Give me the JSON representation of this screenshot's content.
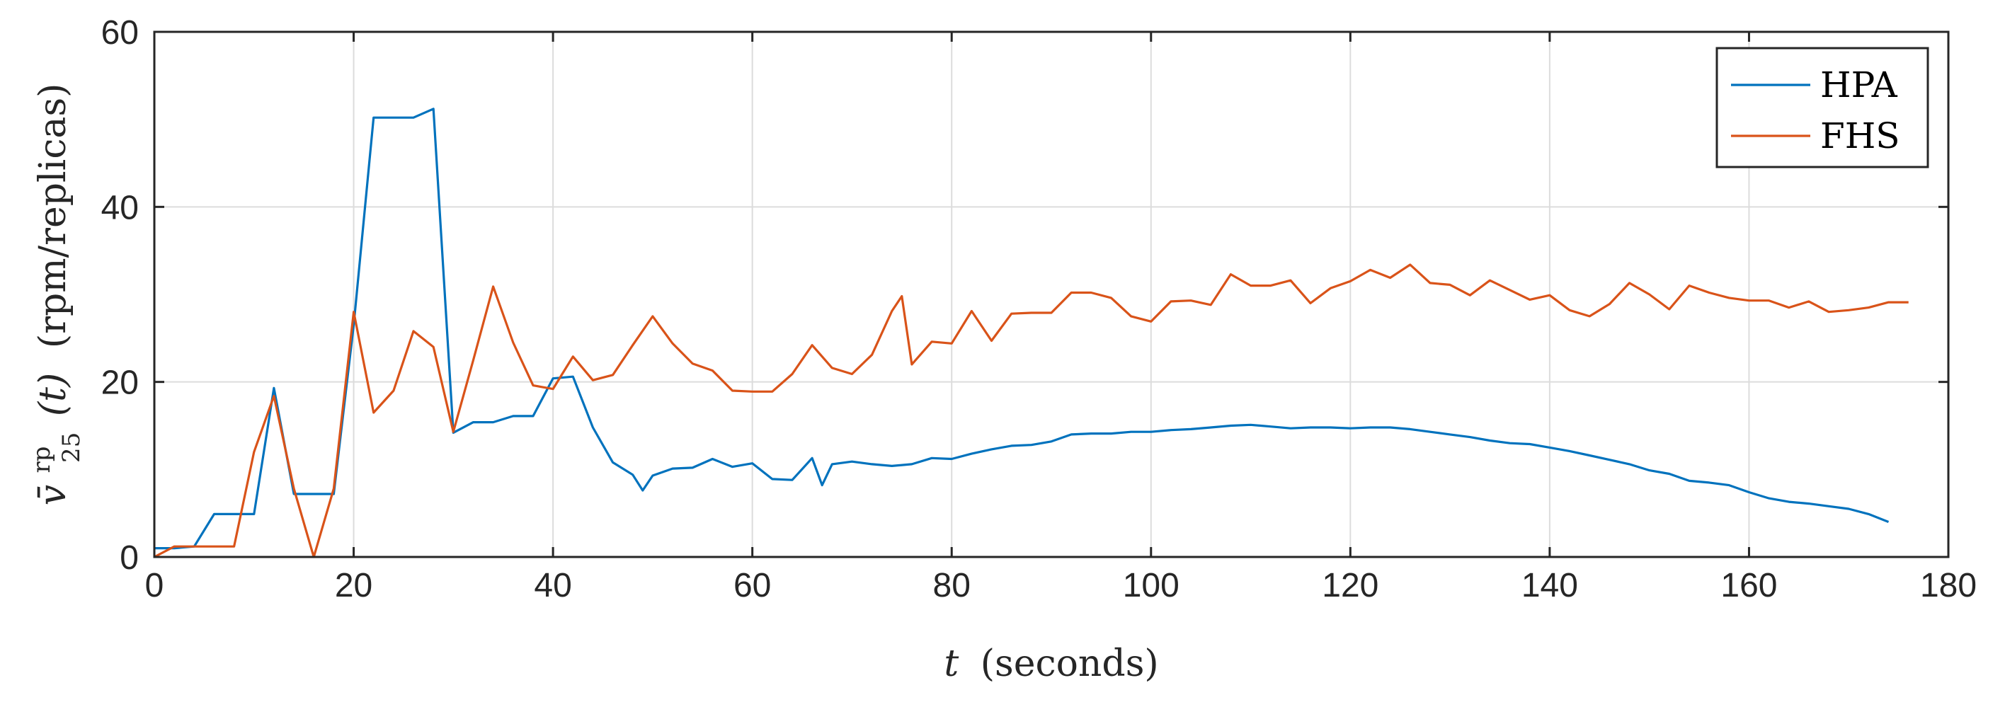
{
  "chart_data": {
    "type": "line",
    "xlabel": {
      "var": "t",
      "text": "(seconds)"
    },
    "ylabel": {
      "var": "v̄",
      "sup": "rp",
      "sub": "25",
      "arg": "(t)",
      "text": "(rpm/replicas)"
    },
    "xlim": [
      0,
      180
    ],
    "ylim": [
      0,
      60
    ],
    "xticks": [
      0,
      20,
      40,
      60,
      80,
      100,
      120,
      140,
      160,
      180
    ],
    "yticks": [
      0,
      20,
      40,
      60
    ],
    "xtick_labels": [
      "0",
      "20",
      "40",
      "60",
      "80",
      "100",
      "120",
      "140",
      "160",
      "180"
    ],
    "ytick_labels": [
      "0",
      "20",
      "40",
      "60"
    ],
    "grid": true,
    "legend_position": "top-right",
    "series": [
      {
        "name": "HPA",
        "color": "#0072bd",
        "points": [
          [
            0,
            1
          ],
          [
            2,
            1
          ],
          [
            4,
            1.2
          ],
          [
            6,
            4.9
          ],
          [
            8,
            4.9
          ],
          [
            10,
            4.9
          ],
          [
            12,
            19.3
          ],
          [
            14,
            7.2
          ],
          [
            16,
            7.2
          ],
          [
            18,
            7.2
          ],
          [
            20,
            26.5
          ],
          [
            22,
            50.2
          ],
          [
            24,
            50.2
          ],
          [
            26,
            50.2
          ],
          [
            28,
            51.2
          ],
          [
            30,
            14.2
          ],
          [
            32,
            15.4
          ],
          [
            34,
            15.4
          ],
          [
            36,
            16.1
          ],
          [
            38,
            16.1
          ],
          [
            40,
            20.4
          ],
          [
            42,
            20.6
          ],
          [
            44,
            14.8
          ],
          [
            46,
            10.8
          ],
          [
            48,
            9.4
          ],
          [
            49,
            7.6
          ],
          [
            50,
            9.3
          ],
          [
            52,
            10.1
          ],
          [
            54,
            10.2
          ],
          [
            56,
            11.2
          ],
          [
            58,
            10.3
          ],
          [
            60,
            10.7
          ],
          [
            62,
            8.9
          ],
          [
            64,
            8.8
          ],
          [
            66,
            11.3
          ],
          [
            67,
            8.2
          ],
          [
            68,
            10.6
          ],
          [
            70,
            10.9
          ],
          [
            72,
            10.6
          ],
          [
            74,
            10.4
          ],
          [
            76,
            10.6
          ],
          [
            78,
            11.3
          ],
          [
            80,
            11.2
          ],
          [
            82,
            11.8
          ],
          [
            84,
            12.3
          ],
          [
            86,
            12.7
          ],
          [
            88,
            12.8
          ],
          [
            90,
            13.2
          ],
          [
            92,
            14
          ],
          [
            94,
            14.1
          ],
          [
            96,
            14.1
          ],
          [
            98,
            14.3
          ],
          [
            100,
            14.3
          ],
          [
            102,
            14.5
          ],
          [
            104,
            14.6
          ],
          [
            106,
            14.8
          ],
          [
            108,
            15
          ],
          [
            110,
            15.1
          ],
          [
            112,
            14.9
          ],
          [
            114,
            14.7
          ],
          [
            116,
            14.8
          ],
          [
            118,
            14.8
          ],
          [
            120,
            14.7
          ],
          [
            122,
            14.8
          ],
          [
            124,
            14.8
          ],
          [
            126,
            14.6
          ],
          [
            128,
            14.3
          ],
          [
            130,
            14
          ],
          [
            132,
            13.7
          ],
          [
            134,
            13.3
          ],
          [
            136,
            13
          ],
          [
            138,
            12.9
          ],
          [
            140,
            12.5
          ],
          [
            142,
            12.1
          ],
          [
            144,
            11.6
          ],
          [
            146,
            11.1
          ],
          [
            148,
            10.6
          ],
          [
            150,
            9.9
          ],
          [
            152,
            9.5
          ],
          [
            154,
            8.7
          ],
          [
            156,
            8.5
          ],
          [
            158,
            8.2
          ],
          [
            160,
            7.4
          ],
          [
            162,
            6.7
          ],
          [
            164,
            6.3
          ],
          [
            166,
            6.1
          ],
          [
            168,
            5.8
          ],
          [
            170,
            5.5
          ],
          [
            172,
            4.9
          ],
          [
            174,
            4
          ]
        ]
      },
      {
        "name": "FHS",
        "color": "#d95319",
        "points": [
          [
            0,
            0
          ],
          [
            2,
            1.2
          ],
          [
            4,
            1.2
          ],
          [
            6,
            1.2
          ],
          [
            8,
            1.2
          ],
          [
            10,
            12
          ],
          [
            12,
            18.4
          ],
          [
            14,
            7.8
          ],
          [
            16,
            0
          ],
          [
            18,
            7.8
          ],
          [
            20,
            28
          ],
          [
            22,
            16.5
          ],
          [
            24,
            19
          ],
          [
            26,
            25.8
          ],
          [
            28,
            24
          ],
          [
            30,
            14.3
          ],
          [
            32,
            22.5
          ],
          [
            34,
            30.9
          ],
          [
            36,
            24.5
          ],
          [
            38,
            19.6
          ],
          [
            40,
            19.2
          ],
          [
            42,
            22.9
          ],
          [
            44,
            20.2
          ],
          [
            46,
            20.8
          ],
          [
            48,
            24.2
          ],
          [
            50,
            27.5
          ],
          [
            52,
            24.4
          ],
          [
            54,
            22.1
          ],
          [
            56,
            21.3
          ],
          [
            58,
            19
          ],
          [
            60,
            18.9
          ],
          [
            62,
            18.9
          ],
          [
            64,
            20.9
          ],
          [
            66,
            24.2
          ],
          [
            68,
            21.6
          ],
          [
            70,
            20.9
          ],
          [
            72,
            23.1
          ],
          [
            74,
            28.1
          ],
          [
            75,
            29.8
          ],
          [
            76,
            22
          ],
          [
            78,
            24.6
          ],
          [
            80,
            24.4
          ],
          [
            82,
            28.1
          ],
          [
            84,
            24.7
          ],
          [
            86,
            27.8
          ],
          [
            88,
            27.9
          ],
          [
            90,
            27.9
          ],
          [
            92,
            30.2
          ],
          [
            94,
            30.2
          ],
          [
            96,
            29.6
          ],
          [
            98,
            27.5
          ],
          [
            100,
            26.9
          ],
          [
            102,
            29.2
          ],
          [
            104,
            29.3
          ],
          [
            106,
            28.8
          ],
          [
            108,
            32.3
          ],
          [
            110,
            31
          ],
          [
            112,
            31
          ],
          [
            114,
            31.6
          ],
          [
            116,
            29
          ],
          [
            118,
            30.7
          ],
          [
            120,
            31.5
          ],
          [
            122,
            32.8
          ],
          [
            124,
            31.9
          ],
          [
            126,
            33.4
          ],
          [
            128,
            31.3
          ],
          [
            130,
            31.1
          ],
          [
            132,
            29.9
          ],
          [
            134,
            31.6
          ],
          [
            136,
            30.5
          ],
          [
            138,
            29.4
          ],
          [
            140,
            29.9
          ],
          [
            142,
            28.2
          ],
          [
            144,
            27.5
          ],
          [
            146,
            28.9
          ],
          [
            148,
            31.3
          ],
          [
            150,
            30
          ],
          [
            152,
            28.3
          ],
          [
            154,
            31
          ],
          [
            156,
            30.2
          ],
          [
            158,
            29.6
          ],
          [
            160,
            29.3
          ],
          [
            162,
            29.3
          ],
          [
            164,
            28.5
          ],
          [
            166,
            29.2
          ],
          [
            168,
            28
          ],
          [
            170,
            28.2
          ],
          [
            172,
            28.5
          ],
          [
            174,
            29.1
          ],
          [
            176,
            29.1
          ]
        ]
      }
    ]
  }
}
